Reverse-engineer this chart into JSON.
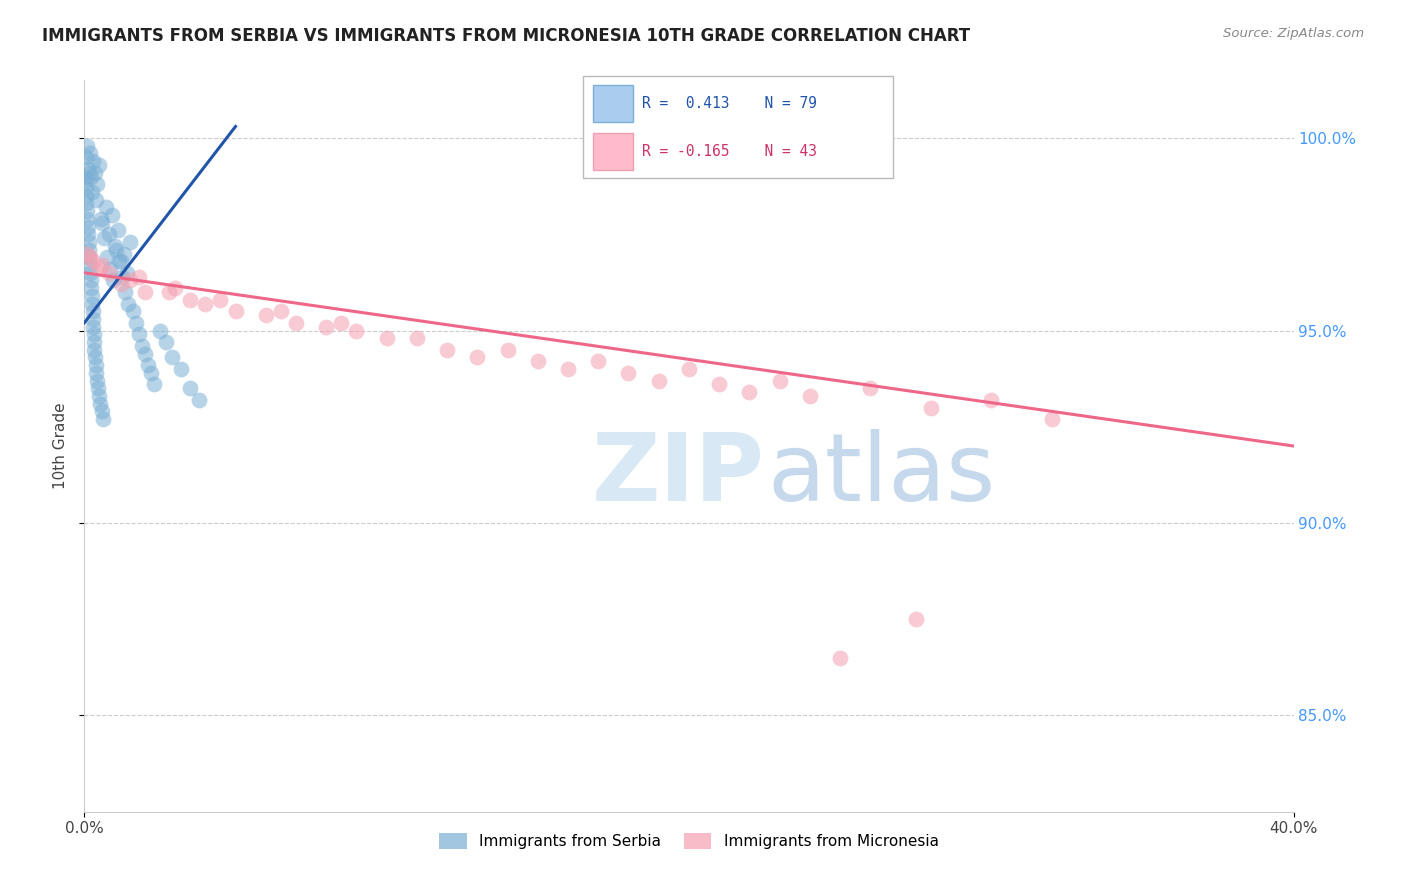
{
  "title": "IMMIGRANTS FROM SERBIA VS IMMIGRANTS FROM MICRONESIA 10TH GRADE CORRELATION CHART",
  "source": "Source: ZipAtlas.com",
  "ylabel": "10th Grade",
  "legend_serbia_label": "Immigrants from Serbia",
  "legend_micronesia_label": "Immigrants from Micronesia",
  "R_serbia": 0.413,
  "N_serbia": 79,
  "R_micronesia": -0.165,
  "N_micronesia": 43,
  "serbia_color": "#7BAFD4",
  "micronesia_color": "#F4A0B0",
  "serbia_line_color": "#2255AA",
  "micronesia_line_color": "#EE6688",
  "right_tick_color": "#4499FF",
  "xlim": [
    0,
    40
  ],
  "ylim": [
    82.5,
    101.5
  ],
  "yticks": [
    85.0,
    90.0,
    95.0,
    100.0
  ],
  "serbia_x": [
    0.05,
    0.08,
    0.12,
    0.18,
    0.22,
    0.3,
    0.35,
    0.42,
    0.5,
    0.6,
    0.7,
    0.8,
    0.9,
    1.0,
    1.1,
    1.2,
    1.3,
    1.4,
    1.5,
    0.15,
    0.25,
    0.4,
    0.55,
    0.65,
    0.75,
    0.85,
    0.95,
    1.05,
    1.15,
    1.25,
    1.35,
    1.45,
    1.6,
    1.7,
    1.8,
    1.9,
    2.0,
    2.1,
    2.2,
    2.3,
    2.5,
    2.7,
    2.9,
    3.2,
    3.5,
    3.8,
    0.02,
    0.03,
    0.04,
    0.06,
    0.07,
    0.09,
    0.1,
    0.11,
    0.13,
    0.14,
    0.16,
    0.17,
    0.19,
    0.2,
    0.21,
    0.23,
    0.24,
    0.26,
    0.27,
    0.28,
    0.29,
    0.31,
    0.32,
    0.33,
    0.36,
    0.37,
    0.38,
    0.43,
    0.45,
    0.48,
    0.52,
    0.58,
    0.62
  ],
  "serbia_y": [
    99.5,
    99.8,
    99.2,
    99.6,
    99.0,
    99.4,
    99.1,
    98.8,
    99.3,
    97.8,
    98.2,
    97.5,
    98.0,
    97.2,
    97.6,
    96.8,
    97.0,
    96.5,
    97.3,
    99.1,
    98.6,
    98.4,
    97.9,
    97.4,
    96.9,
    96.6,
    96.3,
    97.1,
    96.8,
    96.4,
    96.0,
    95.7,
    95.5,
    95.2,
    94.9,
    94.6,
    94.4,
    94.1,
    93.9,
    93.6,
    95.0,
    94.7,
    94.3,
    94.0,
    93.5,
    93.2,
    98.9,
    99.0,
    98.7,
    98.5,
    98.3,
    98.1,
    97.9,
    97.7,
    97.5,
    97.3,
    97.1,
    96.9,
    96.7,
    96.5,
    96.3,
    96.1,
    95.9,
    95.7,
    95.5,
    95.3,
    95.1,
    94.9,
    94.7,
    94.5,
    94.3,
    94.1,
    93.9,
    93.7,
    93.5,
    93.3,
    93.1,
    92.9,
    92.7
  ],
  "micronesia_x": [
    0.1,
    0.3,
    0.8,
    1.2,
    2.0,
    3.5,
    5.0,
    7.0,
    9.0,
    11.0,
    14.0,
    17.0,
    20.0,
    23.0,
    26.0,
    27.5,
    30.0,
    0.5,
    1.5,
    2.8,
    4.0,
    6.0,
    8.0,
    10.0,
    12.0,
    15.0,
    18.0,
    21.0,
    24.0,
    28.0,
    32.0,
    0.2,
    0.6,
    1.8,
    3.0,
    4.5,
    6.5,
    8.5,
    13.0,
    16.0,
    19.0,
    22.0,
    25.0
  ],
  "micronesia_y": [
    97.0,
    96.8,
    96.5,
    96.2,
    96.0,
    95.8,
    95.5,
    95.2,
    95.0,
    94.8,
    94.5,
    94.2,
    94.0,
    93.7,
    93.5,
    87.5,
    93.2,
    96.6,
    96.3,
    96.0,
    95.7,
    95.4,
    95.1,
    94.8,
    94.5,
    94.2,
    93.9,
    93.6,
    93.3,
    93.0,
    92.7,
    96.9,
    96.7,
    96.4,
    96.1,
    95.8,
    95.5,
    95.2,
    94.3,
    94.0,
    93.7,
    93.4,
    86.5
  ],
  "serbia_line_x": [
    0.0,
    5.0
  ],
  "serbia_line_y": [
    95.2,
    100.3
  ],
  "micronesia_line_x": [
    0.0,
    40.0
  ],
  "micronesia_line_y": [
    96.5,
    92.0
  ]
}
